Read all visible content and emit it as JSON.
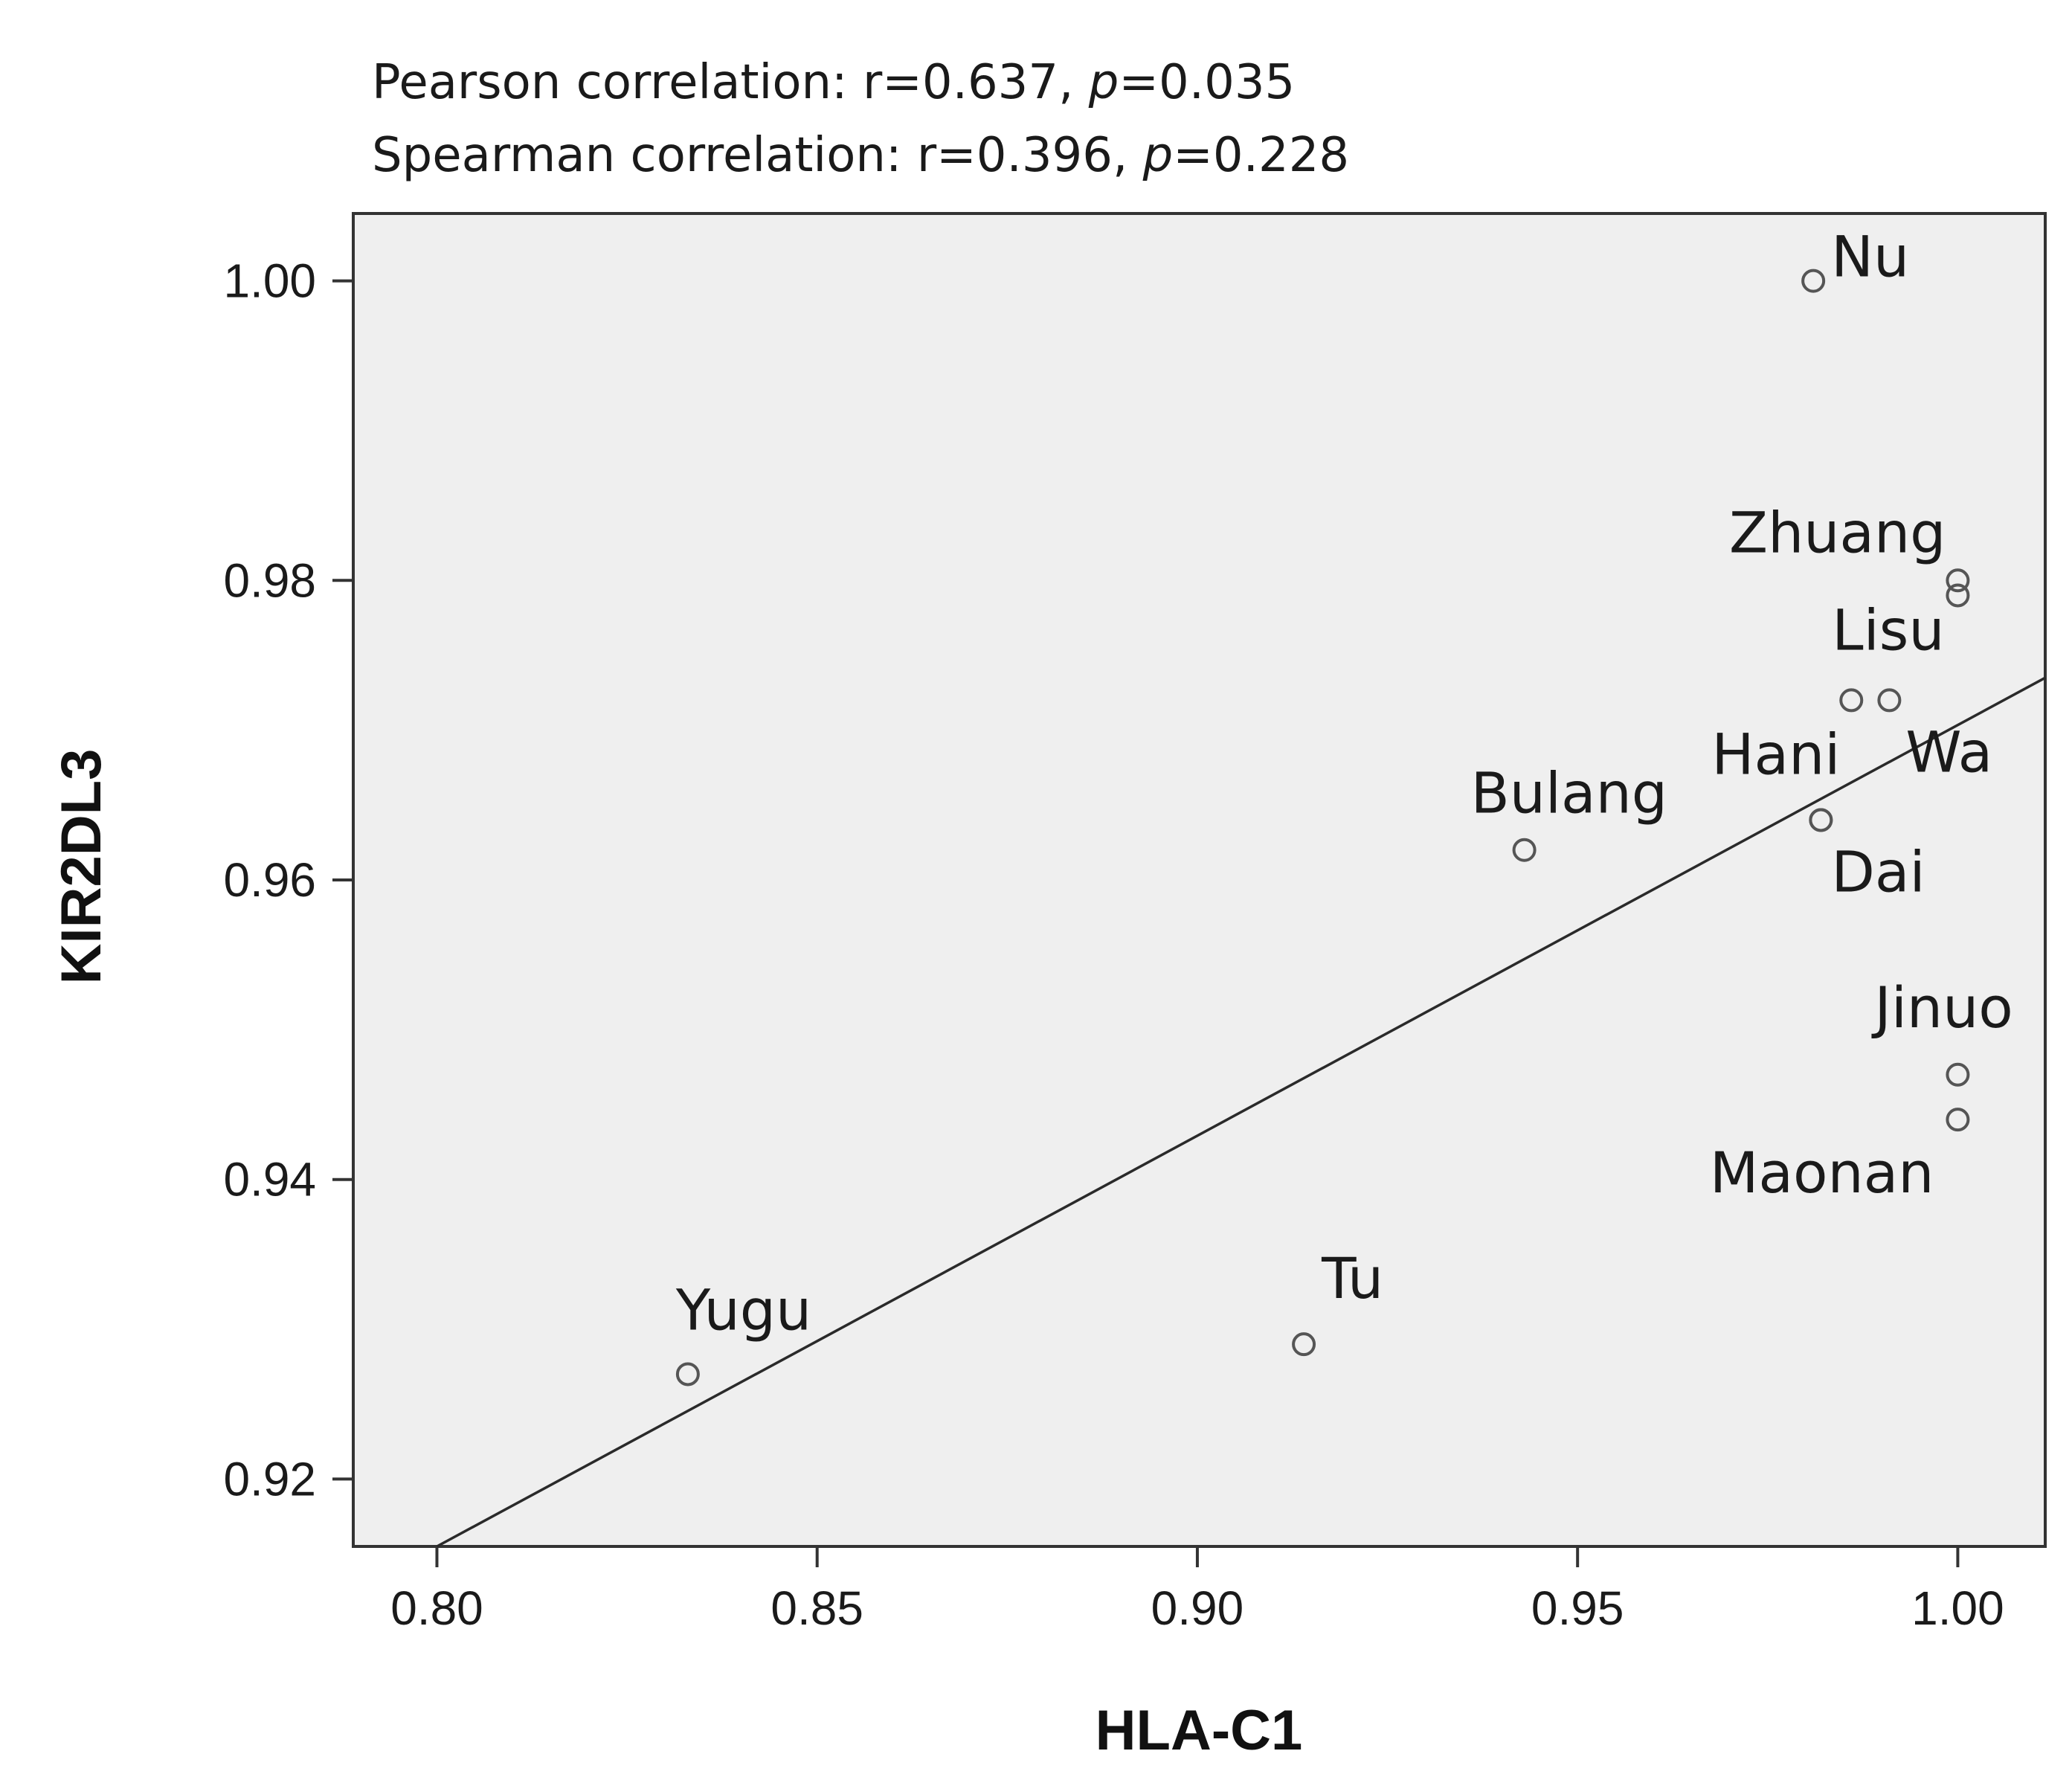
{
  "stats": {
    "pearson_prefix": "Pearson correlation: r=0.637, ",
    "pearson_p_symbol": "p",
    "pearson_p_value": "=0.035",
    "spearman_prefix": "Spearman correlation: r=0.396, ",
    "spearman_p_symbol": "p",
    "spearman_p_value": "=0.228"
  },
  "chart_data": {
    "type": "scatter",
    "title": "",
    "xlabel": "HLA-C1",
    "ylabel": "KIR2DL3",
    "xlim": [
      0.789,
      1.0115
    ],
    "ylim": [
      0.9155,
      1.0045
    ],
    "x_ticks": [
      0.8,
      0.85,
      0.9,
      0.95,
      1.0
    ],
    "x_tick_labels": [
      "0.80",
      "0.85",
      "0.90",
      "0.95",
      "1.00"
    ],
    "y_ticks": [
      0.92,
      0.94,
      0.96,
      0.98,
      1.0
    ],
    "y_tick_labels": [
      "0.92",
      "0.94",
      "0.96",
      "0.98",
      "1.00"
    ],
    "grid": false,
    "background": "#efefef",
    "marker_color": "#555555",
    "points": [
      {
        "label": "Nu",
        "x": 0.981,
        "y": 1.0
      },
      {
        "label": "Zhuang",
        "x": 1.0,
        "y": 0.98
      },
      {
        "label": "",
        "x": 1.0,
        "y": 0.979
      },
      {
        "label": "Lisu",
        "x": 0.986,
        "y": 0.972
      },
      {
        "label": "Wa",
        "x": 0.991,
        "y": 0.972
      },
      {
        "label": "Hani",
        "x": 0.982,
        "y": 0.964
      },
      {
        "label": "Dai",
        "x": 0.982,
        "y": 0.964
      },
      {
        "label": "Bulang",
        "x": 0.943,
        "y": 0.962
      },
      {
        "label": "Jinuo",
        "x": 1.0,
        "y": 0.947
      },
      {
        "label": "Maonan",
        "x": 1.0,
        "y": 0.944
      },
      {
        "label": "Tu",
        "x": 0.914,
        "y": 0.929
      },
      {
        "label": "Yugu",
        "x": 0.833,
        "y": 0.927
      }
    ],
    "fit_line": {
      "x": [
        0.8,
        1.0115
      ],
      "y": [
        0.9155,
        0.9735
      ]
    }
  }
}
